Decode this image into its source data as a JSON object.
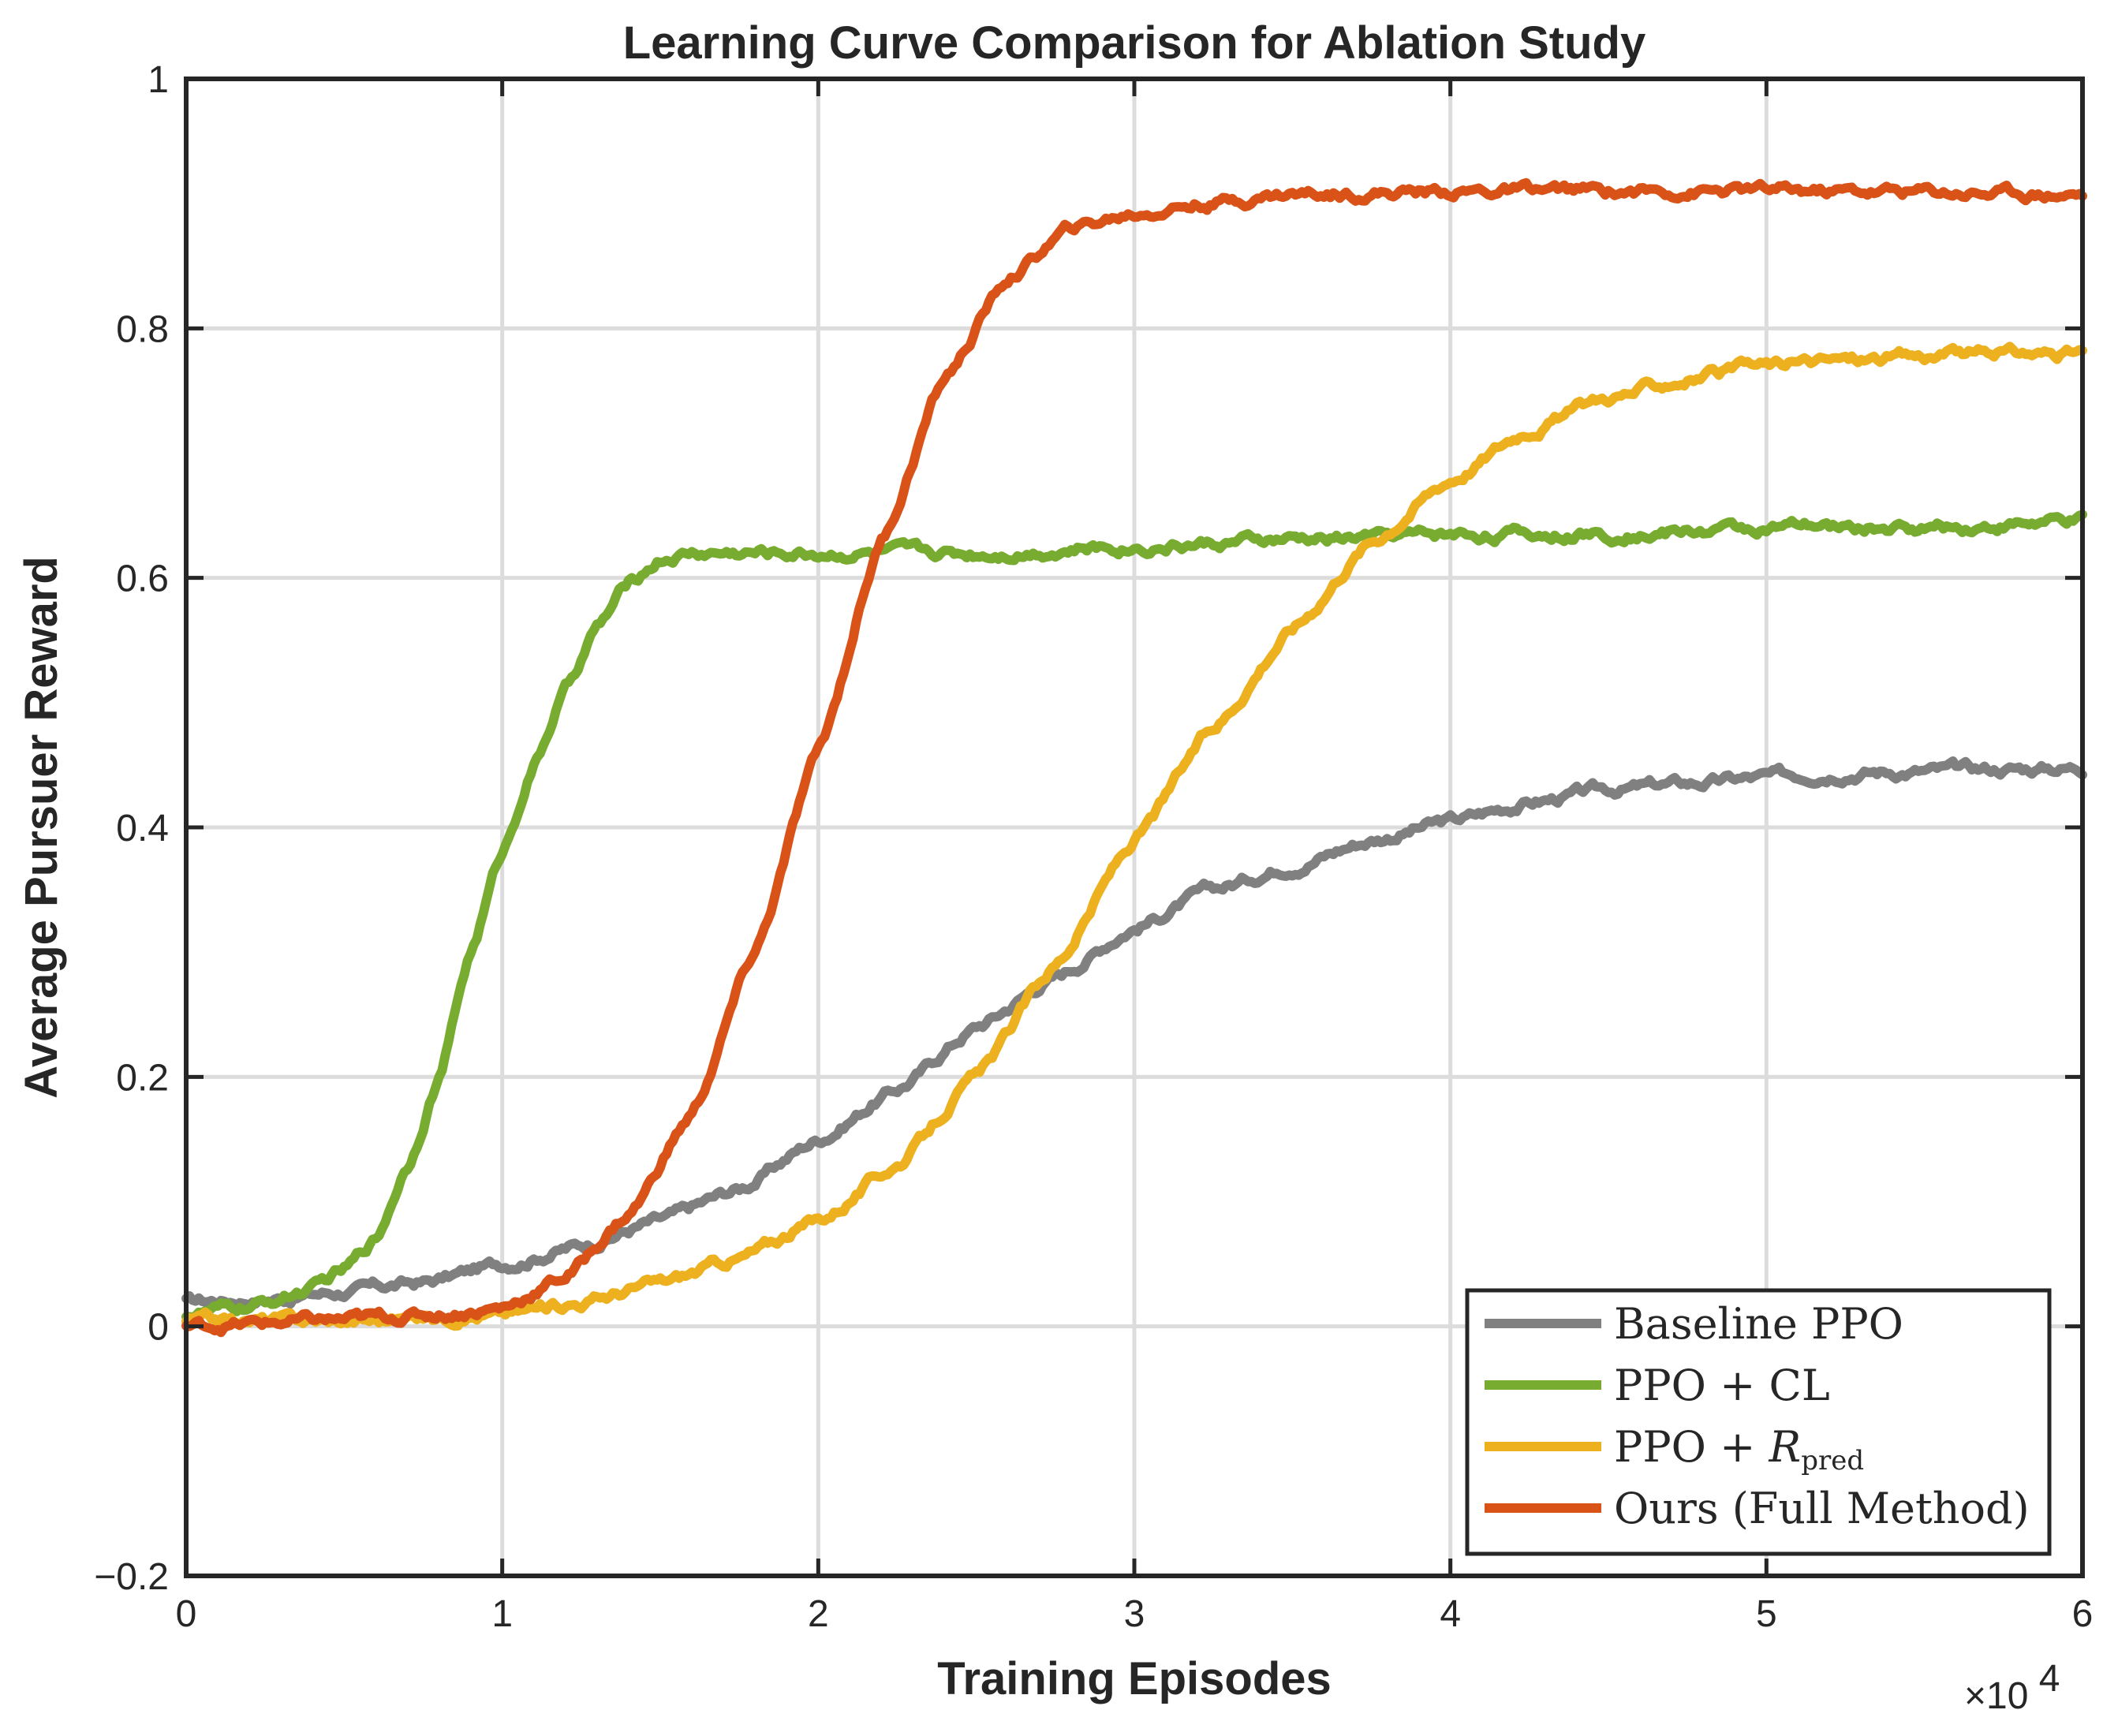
{
  "chart_data": {
    "type": "line",
    "title": "Learning Curve Comparison for Ablation Study",
    "xlabel": "Training Episodes",
    "ylabel": "Average Pursuer Reward",
    "x_multiplier_label": "×10",
    "x_multiplier_exponent": "4",
    "xlim": [
      0,
      6
    ],
    "ylim": [
      -0.2,
      1
    ],
    "x_ticks": [
      0,
      1,
      2,
      3,
      4,
      5,
      6
    ],
    "x_tick_labels": [
      "0",
      "1",
      "2",
      "3",
      "4",
      "5",
      "6"
    ],
    "y_ticks": [
      -0.2,
      0,
      0.2,
      0.4,
      0.6,
      0.8,
      1
    ],
    "y_tick_labels": [
      "−0.2",
      "0",
      "0.2",
      "0.4",
      "0.6",
      "0.8",
      "1"
    ],
    "grid": true,
    "legend_position": "bottom-right",
    "legend_series_order": [
      0,
      1,
      2,
      3
    ],
    "series": [
      {
        "name": "Baseline PPO",
        "legend_label": "Baseline PPO",
        "color": "#808080",
        "x": [
          0,
          0.25,
          0.5,
          0.75,
          1.0,
          1.25,
          1.5,
          1.75,
          2.0,
          2.25,
          2.5,
          2.75,
          3.0,
          3.25,
          3.5,
          3.75,
          4.0,
          4.25,
          4.5,
          4.75,
          5.0,
          5.25,
          5.5,
          5.75,
          6.0
        ],
        "y": [
          0.02,
          0.022,
          0.028,
          0.035,
          0.05,
          0.065,
          0.085,
          0.11,
          0.15,
          0.19,
          0.24,
          0.28,
          0.32,
          0.35,
          0.37,
          0.39,
          0.405,
          0.42,
          0.43,
          0.435,
          0.44,
          0.445,
          0.445,
          0.447,
          0.448
        ]
      },
      {
        "name": "PPO + CL",
        "legend_label": "PPO + ",
        "legend_suffix": "CL",
        "color": "#77AC30",
        "x": [
          0,
          0.2,
          0.4,
          0.5,
          0.6,
          0.7,
          0.8,
          0.9,
          1.0,
          1.1,
          1.2,
          1.3,
          1.4,
          1.5,
          1.6,
          1.8,
          2.0,
          2.5,
          3.0,
          3.5,
          4.0,
          4.5,
          5.0,
          5.5,
          6.0
        ],
        "y": [
          0.01,
          0.015,
          0.03,
          0.045,
          0.07,
          0.13,
          0.2,
          0.3,
          0.38,
          0.45,
          0.51,
          0.56,
          0.595,
          0.615,
          0.62,
          0.62,
          0.62,
          0.62,
          0.625,
          0.63,
          0.635,
          0.635,
          0.64,
          0.64,
          0.645
        ]
      },
      {
        "name": "PPO + R_pred",
        "legend_label": "PPO + ",
        "legend_suffix": "R",
        "legend_subscript": "pred",
        "color": "#EDB120",
        "x": [
          0,
          0.5,
          1.0,
          1.25,
          1.5,
          1.75,
          2.0,
          2.25,
          2.5,
          2.75,
          3.0,
          3.25,
          3.5,
          3.75,
          4.0,
          4.25,
          4.5,
          4.75,
          5.0,
          5.25,
          5.5,
          5.75,
          6.0
        ],
        "y": [
          0.005,
          0.005,
          0.01,
          0.02,
          0.035,
          0.055,
          0.085,
          0.13,
          0.2,
          0.29,
          0.39,
          0.48,
          0.56,
          0.63,
          0.68,
          0.72,
          0.745,
          0.76,
          0.77,
          0.775,
          0.778,
          0.78,
          0.78
        ]
      },
      {
        "name": "Ours (Full Method)",
        "legend_label": "Ours (Full Method)",
        "color": "#D95319",
        "x": [
          0,
          0.5,
          0.8,
          1.0,
          1.2,
          1.4,
          1.6,
          1.8,
          2.0,
          2.2,
          2.4,
          2.6,
          2.8,
          3.0,
          3.2,
          3.5,
          4.0,
          4.5,
          5.0,
          5.5,
          6.0
        ],
        "y": [
          0,
          0.005,
          0.01,
          0.015,
          0.04,
          0.09,
          0.17,
          0.3,
          0.46,
          0.63,
          0.76,
          0.84,
          0.88,
          0.892,
          0.9,
          0.908,
          0.91,
          0.91,
          0.91,
          0.91,
          0.908
        ]
      }
    ]
  }
}
